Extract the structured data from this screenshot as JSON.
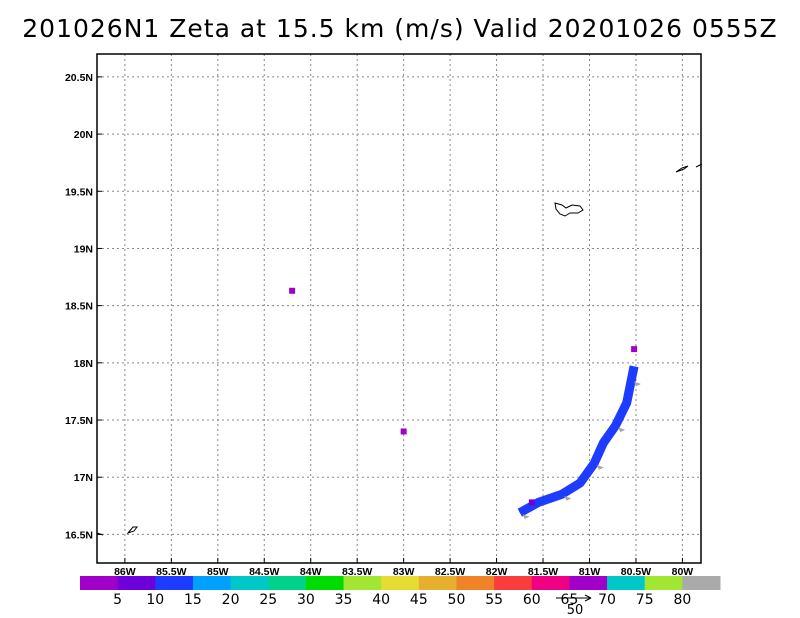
{
  "title": "201026N1 Zeta at 15.5 km (m/s) Valid 20201026 0555Z",
  "map": {
    "lon_range": [
      -86.3,
      -79.8
    ],
    "lat_range": [
      16.25,
      20.7
    ],
    "lat_ticks": [
      {
        "value": 16.5,
        "label": "16.5N"
      },
      {
        "value": 17.0,
        "label": "17N"
      },
      {
        "value": 17.5,
        "label": "17.5N"
      },
      {
        "value": 18.0,
        "label": "18N"
      },
      {
        "value": 18.5,
        "label": "18.5N"
      },
      {
        "value": 19.0,
        "label": "19N"
      },
      {
        "value": 19.5,
        "label": "19.5N"
      },
      {
        "value": 20.0,
        "label": "20N"
      },
      {
        "value": 20.5,
        "label": "20.5N"
      }
    ],
    "lon_ticks": [
      {
        "value": -86.0,
        "label": "86W"
      },
      {
        "value": -85.5,
        "label": "85.5W"
      },
      {
        "value": -85.0,
        "label": "85W"
      },
      {
        "value": -84.5,
        "label": "84.5W"
      },
      {
        "value": -84.0,
        "label": "84W"
      },
      {
        "value": -83.5,
        "label": "83.5W"
      },
      {
        "value": -83.0,
        "label": "83W"
      },
      {
        "value": -82.5,
        "label": "82.5W"
      },
      {
        "value": -82.0,
        "label": "82W"
      },
      {
        "value": -81.5,
        "label": "81.5W"
      },
      {
        "value": -81.0,
        "label": "81W"
      },
      {
        "value": -80.5,
        "label": "80.5W"
      },
      {
        "value": -80.0,
        "label": "80W"
      }
    ],
    "grid": true
  },
  "colorbar": {
    "colors": [
      "#a000c8",
      "#6e00dc",
      "#1e3cff",
      "#00a0ff",
      "#00c8c8",
      "#00d28c",
      "#00dc00",
      "#a0e632",
      "#e6dc32",
      "#e6af2d",
      "#f08228",
      "#fa3c3c",
      "#f00082",
      "#a000c8",
      "#00c8c8",
      "#a0e632",
      "#aaaaaa"
    ],
    "labels": [
      "5",
      "10",
      "15",
      "20",
      "25",
      "30",
      "35",
      "40",
      "45",
      "50",
      "55",
      "60",
      "65",
      "70",
      "75",
      "80"
    ]
  },
  "reference_vector": {
    "label": "50"
  },
  "features": [
    {
      "kind": "swath",
      "color": "#1e3cff",
      "points": [
        [
          -81.75,
          16.69
        ],
        [
          -81.55,
          16.78
        ],
        [
          -81.3,
          16.85
        ],
        [
          -81.1,
          16.95
        ],
        [
          -80.95,
          17.12
        ],
        [
          -80.85,
          17.3
        ],
        [
          -80.72,
          17.45
        ],
        [
          -80.6,
          17.65
        ],
        [
          -80.55,
          17.85
        ],
        [
          -80.52,
          17.97
        ]
      ]
    },
    {
      "kind": "dot",
      "color": "#a000c8",
      "lon": -84.2,
      "lat": 18.63
    },
    {
      "kind": "dot",
      "color": "#a000c8",
      "lon": -80.52,
      "lat": 18.12
    },
    {
      "kind": "dot",
      "color": "#6e00dc",
      "lon": -81.62,
      "lat": 16.78
    },
    {
      "kind": "dot",
      "color": "#a000c8",
      "lon": -83.0,
      "lat": 17.4
    }
  ]
}
